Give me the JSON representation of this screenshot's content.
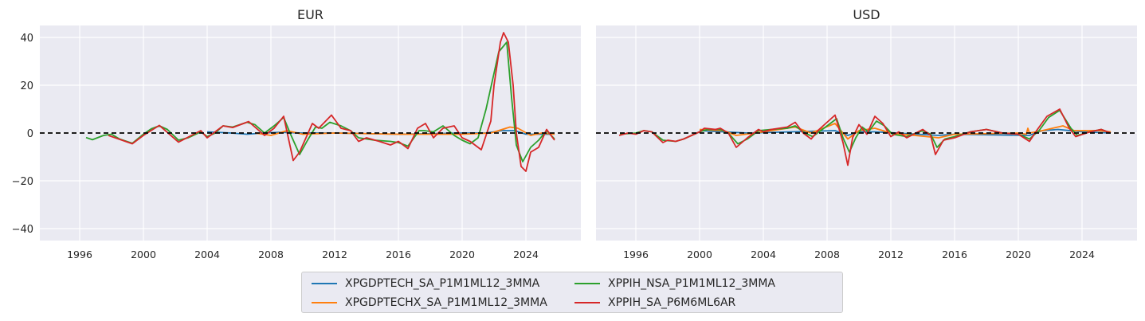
{
  "chart_data": [
    {
      "type": "line",
      "title": "EUR",
      "xlim": [
        1993.5,
        2027.45
      ],
      "ylim": [
        -45,
        45
      ],
      "xticks": [
        1996,
        2000,
        2004,
        2008,
        2012,
        2016,
        2020,
        2024
      ],
      "yticks": [
        -40,
        -20,
        0,
        20,
        40
      ],
      "grid": true,
      "reference_line": {
        "y": 0,
        "style": "dashed",
        "color": "#000000"
      },
      "series": [
        {
          "name": "XPGDPTECH_SA_P1M1ML12_3MMA",
          "color": "#1f77b4",
          "x": [
            2004.0,
            2005.5,
            2006.5,
            2007.5,
            2008.5,
            2010,
            2012,
            2016,
            2020,
            2021.5,
            2022.5,
            2023.3,
            2024,
            2025.5
          ],
          "y": [
            0.5,
            0,
            -0.5,
            0,
            0.3,
            0,
            0,
            -0.5,
            0,
            0,
            1,
            1,
            -0.5,
            -0.5
          ]
        },
        {
          "name": "XPGDPTECHX_SA_P1M1ML12_3MMA",
          "color": "#ff7f0e",
          "x": [
            2007.0,
            2008,
            2009,
            2010,
            2012,
            2016,
            2020,
            2021.8,
            2023,
            2023.5,
            2024.3,
            2025,
            2025.8
          ],
          "y": [
            0,
            -1,
            1,
            -0.5,
            0,
            -0.5,
            -0.5,
            0,
            2.5,
            2,
            -1,
            0,
            -0.5
          ]
        },
        {
          "name": "XPPIH_NSA_P1M1ML12_3MMA",
          "color": "#2ca02c",
          "x": [
            1996.4,
            1996.8,
            1997.5,
            1998.0,
            1998.5,
            1999.3,
            2000.0,
            2000.5,
            2001.0,
            2001.5,
            2002.2,
            2002.8,
            2003.6,
            2004.0,
            2004.5,
            2005.0,
            2005.6,
            2006.5,
            2007.0,
            2007.6,
            2008.2,
            2008.8,
            2009.2,
            2009.8,
            2010.3,
            2010.8,
            2011.2,
            2011.7,
            2012.4,
            2013.0,
            2013.5,
            2014.5,
            2015.5,
            2016.0,
            2016.6,
            2017.3,
            2017.6,
            2018.2,
            2018.8,
            2019.5,
            2020.0,
            2020.5,
            2021.0,
            2021.5,
            2022.0,
            2022.3,
            2022.8,
            2023.1,
            2023.4,
            2023.8,
            2024.3,
            2024.8,
            2025.3,
            2025.8
          ],
          "y": [
            -1.9,
            -2.8,
            -1.0,
            -0.5,
            -2.5,
            -4.3,
            -0.5,
            1.8,
            3.0,
            1.5,
            -3.0,
            -2.0,
            0.5,
            -1.5,
            0,
            3.0,
            2.5,
            4.5,
            3.5,
            0,
            3.0,
            6.5,
            0,
            -9,
            -3,
            2.5,
            2.0,
            4.5,
            3.0,
            1.0,
            -2.0,
            -3.0,
            -3.5,
            -4,
            -5.5,
            1.0,
            1.0,
            0.5,
            3.0,
            -1,
            -3,
            -4.5,
            -2,
            10,
            25,
            34,
            38,
            15,
            -5,
            -12,
            -6,
            -3,
            1,
            -2.5
          ]
        },
        {
          "name": "XPPIH_SA_P6M6ML6AR",
          "color": "#d62728",
          "x": [
            1997.8,
            1999.3,
            2000.0,
            2001.0,
            2002.2,
            2003.6,
            2004.0,
            2005.0,
            2005.6,
            2006.6,
            2007.6,
            2008.2,
            2008.8,
            2009.4,
            2009.8,
            2010.6,
            2011.0,
            2011.8,
            2012.4,
            2013.0,
            2013.5,
            2014.0,
            2014.8,
            2015.5,
            2016.0,
            2016.6,
            2017.2,
            2017.7,
            2018.2,
            2018.8,
            2019.5,
            2020.0,
            2020.5,
            2021.2,
            2021.8,
            2022.0,
            2022.4,
            2022.6,
            2022.9,
            2023.2,
            2023.4,
            2023.7,
            2024.0,
            2024.3,
            2024.8,
            2025.3,
            2025.8
          ],
          "y": [
            -1,
            -4.5,
            -1,
            3.2,
            -3.8,
            1,
            -2,
            3,
            2.3,
            4.8,
            -1,
            2,
            7,
            -11.5,
            -8,
            4,
            2,
            7.5,
            2,
            1,
            -3.5,
            -2,
            -3.5,
            -5,
            -3.5,
            -6.5,
            2,
            4,
            -2,
            2,
            3,
            -2,
            -3.5,
            -7,
            5,
            20,
            38,
            42,
            38,
            20,
            0,
            -14,
            -16,
            -8,
            -6,
            1.5,
            -3
          ]
        }
      ]
    },
    {
      "type": "line",
      "title": "USD",
      "xlim": [
        1993.5,
        2027.45
      ],
      "ylim": [
        -45,
        45
      ],
      "xticks": [
        1996,
        2000,
        2004,
        2008,
        2012,
        2016,
        2020,
        2024
      ],
      "grid": true,
      "reference_line": {
        "y": 0,
        "style": "dashed",
        "color": "#000000"
      },
      "series": [
        {
          "name": "XPGDPTECH_SA_P1M1ML12_3MMA",
          "color": "#1f77b4",
          "x": [
            2000,
            2003,
            2008.5,
            2009.3,
            2010,
            2011,
            2015,
            2016,
            2020.7,
            2021.5,
            2022.5,
            2024,
            2025.8
          ],
          "y": [
            1,
            0,
            1,
            -1,
            0.5,
            0.5,
            -1,
            -0.5,
            -1,
            1,
            1.5,
            0.5,
            0
          ]
        },
        {
          "name": "XPGDPTECHX_SA_P1M1ML12_3MMA",
          "color": "#ff7f0e",
          "x": [
            2000,
            2001.5,
            2002.3,
            2003.5,
            2005.5,
            2006.0,
            2007.0,
            2008.5,
            2009.3,
            2010,
            2011,
            2012,
            2015,
            2016,
            2020,
            2020.5,
            2020.6,
            2020.7,
            2021.5,
            2022.8,
            2023.5,
            2025,
            2025.8
          ],
          "y": [
            1.5,
            1,
            -1,
            0,
            2,
            2.5,
            0,
            4,
            -2.5,
            1,
            2,
            0,
            -2,
            -0.5,
            0,
            -0.5,
            2,
            0,
            1,
            3,
            1,
            1,
            0.5
          ]
        },
        {
          "name": "XPPIH_NSA_P1M1ML12_3MMA",
          "color": "#2ca02c",
          "x": [
            1995.0,
            1996.0,
            1996.5,
            1997.0,
            1997.7,
            1998.5,
            1999.0,
            2000.0,
            2000.5,
            2001.3,
            2001.8,
            2002.4,
            2003.0,
            2003.7,
            2004.5,
            2005.5,
            2006.0,
            2006.6,
            2007.1,
            2007.6,
            2008.0,
            2008.6,
            2009.0,
            2009.4,
            2009.8,
            2010.2,
            2010.6,
            2011.1,
            2011.6,
            2012.1,
            2013.0,
            2014.0,
            2014.5,
            2014.9,
            2015.4,
            2016.0,
            2017.0,
            2018.0,
            2019.0,
            2020.0,
            2020.7,
            2021.3,
            2021.9,
            2022.6,
            2023.3,
            2023.7,
            2024.5,
            2025.2,
            2025.8
          ],
          "y": [
            -0.5,
            0,
            1,
            0.5,
            -3,
            -3.5,
            -2.5,
            0.5,
            1.5,
            1.5,
            0,
            -4.5,
            -2.5,
            1,
            1.5,
            2,
            3,
            0,
            -1.5,
            1,
            3,
            6,
            -2,
            -8,
            -2,
            2.5,
            0.5,
            5,
            3,
            -0.5,
            -1.5,
            1,
            -0.5,
            -6,
            -2.5,
            -1.5,
            0.5,
            1.5,
            0,
            -0.5,
            -2.5,
            1,
            6.5,
            9.5,
            2,
            -1,
            0.5,
            1.5,
            0
          ]
        },
        {
          "name": "XPPIH_SA_P6M6ML6AR",
          "color": "#d62728",
          "x": [
            1994.95,
            1995.5,
            1996.0,
            1996.5,
            1997.0,
            1997.7,
            1998.0,
            1998.5,
            1999.0,
            2000.0,
            2000.3,
            2001.0,
            2001.3,
            2001.8,
            2002.3,
            2003.0,
            2003.7,
            2004.0,
            2004.5,
            2005.0,
            2005.5,
            2006.0,
            2006.5,
            2007.0,
            2007.5,
            2008.0,
            2008.5,
            2009.0,
            2009.3,
            2009.6,
            2010.0,
            2010.5,
            2011.0,
            2011.5,
            2012.0,
            2012.5,
            2013.0,
            2014.0,
            2014.5,
            2014.8,
            2015.3,
            2016.0,
            2017.0,
            2018.0,
            2019.0,
            2020.0,
            2020.7,
            2021.2,
            2021.8,
            2022.6,
            2023.2,
            2023.6,
            2024.5,
            2025.2,
            2025.8
          ],
          "y": [
            -1,
            0,
            -0.5,
            1,
            0.5,
            -4,
            -3,
            -3.5,
            -2.5,
            0.5,
            2,
            1.5,
            2,
            0,
            -6,
            -2,
            1.5,
            0.5,
            1.5,
            2,
            2.5,
            4.5,
            0,
            -2.5,
            1.5,
            4.5,
            7.5,
            -4,
            -13.5,
            -2,
            3.5,
            -0.5,
            7,
            4,
            -1.5,
            0.5,
            -2,
            1.5,
            -1,
            -9,
            -3,
            -2,
            0.5,
            1.5,
            0,
            -0.5,
            -3.5,
            1.5,
            7,
            10,
            2,
            -1.5,
            0.5,
            1.5,
            0
          ]
        }
      ]
    }
  ],
  "legend": {
    "placement": "bottom-center",
    "items": [
      {
        "label": "XPGDPTECH_SA_P1M1ML12_3MMA",
        "color": "#1f77b4"
      },
      {
        "label": "XPPIH_NSA_P1M1ML12_3MMA",
        "color": "#2ca02c"
      },
      {
        "label": "XPGDPTECHX_SA_P1M1ML12_3MMA",
        "color": "#ff7f0e"
      },
      {
        "label": "XPPIH_SA_P6M6ML6AR",
        "color": "#d62728"
      }
    ]
  },
  "colors": {
    "plot_background": "#eaeaf2",
    "grid": "#ffffff"
  }
}
